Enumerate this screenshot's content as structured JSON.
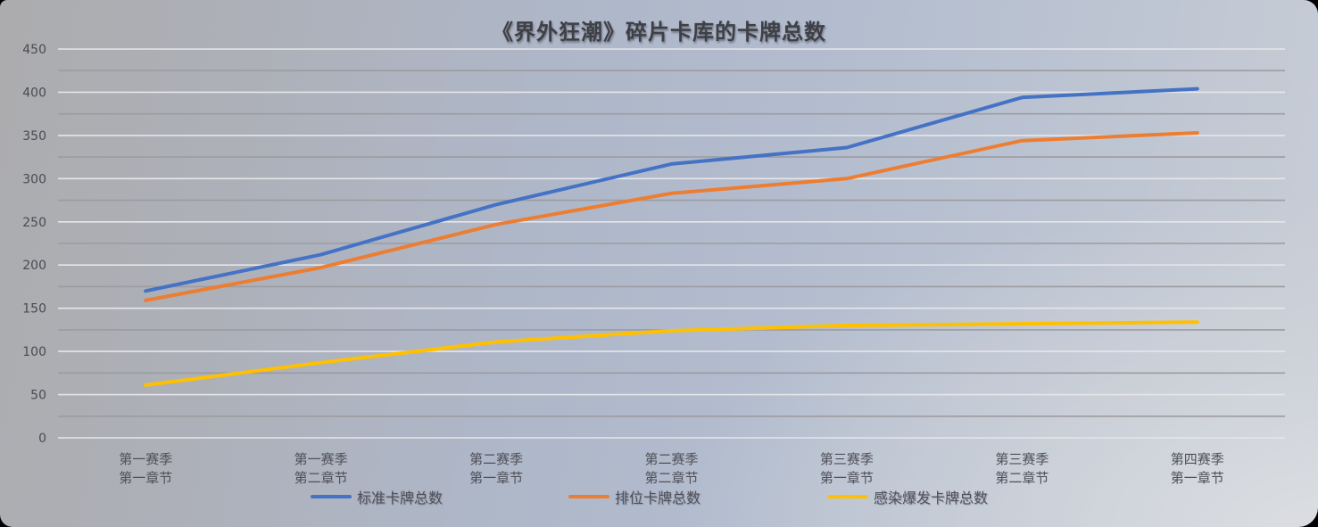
{
  "chart_data": {
    "type": "line",
    "title": "《界外狂潮》碎片卡库的卡牌总数",
    "xlabel": "",
    "ylabel": "",
    "ylim": [
      0,
      450
    ],
    "yticks": [
      0,
      50,
      100,
      150,
      200,
      250,
      300,
      350,
      400,
      450
    ],
    "minor_gridlines": [
      25,
      75,
      125,
      175,
      225,
      275,
      325,
      375,
      425
    ],
    "grid": true,
    "legend_position": "bottom",
    "categories": [
      [
        "第一赛季",
        "第一章节"
      ],
      [
        "第一赛季",
        "第二章节"
      ],
      [
        "第二赛季",
        "第一章节"
      ],
      [
        "第二赛季",
        "第二章节"
      ],
      [
        "第三赛季",
        "第一章节"
      ],
      [
        "第三赛季",
        "第二章节"
      ],
      [
        "第四赛季",
        "第一章节"
      ]
    ],
    "series": [
      {
        "name": "标准卡牌总数",
        "color": "#4472C4",
        "values": [
          170,
          212,
          270,
          317,
          336,
          394,
          404
        ]
      },
      {
        "name": "排位卡牌总数",
        "color": "#ED7D31",
        "values": [
          159,
          197,
          247,
          283,
          300,
          344,
          353
        ]
      },
      {
        "name": "感染爆发卡牌总数",
        "color": "#FFC000",
        "values": [
          61,
          87,
          111,
          124,
          130,
          132,
          134
        ]
      }
    ]
  }
}
